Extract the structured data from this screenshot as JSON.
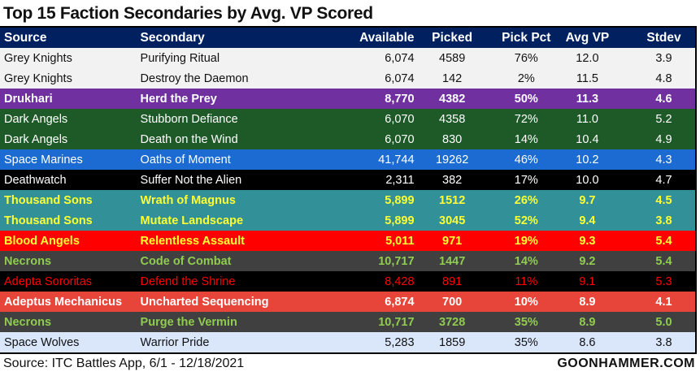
{
  "title": "Top 15 Faction Secondaries by Avg. VP Scored",
  "headers": [
    "Source",
    "Secondary",
    "Available",
    "Picked",
    "Pick Pct",
    "Avg VP",
    "Stdev"
  ],
  "rows": [
    {
      "source": "Grey Knights",
      "secondary": "Purifying Ritual",
      "available": "6,074",
      "picked": "4589",
      "pct": "76%",
      "avg": "12.0",
      "stdev": "3.9",
      "bg": "#f2f2f2",
      "fg": "#111111",
      "bold": false
    },
    {
      "source": "Grey Knights",
      "secondary": "Destroy the Daemon",
      "available": "6,074",
      "picked": "142",
      "pct": "2%",
      "avg": "11.5",
      "stdev": "4.8",
      "bg": "#f2f2f2",
      "fg": "#111111",
      "bold": false
    },
    {
      "source": "Drukhari",
      "secondary": "Herd the Prey",
      "available": "8,770",
      "picked": "4382",
      "pct": "50%",
      "avg": "11.3",
      "stdev": "4.6",
      "bg": "#7030a0",
      "fg": "#ffffff",
      "bold": true
    },
    {
      "source": "Dark Angels",
      "secondary": "Stubborn Defiance",
      "available": "6,070",
      "picked": "4358",
      "pct": "72%",
      "avg": "11.0",
      "stdev": "5.2",
      "bg": "#1e5a28",
      "fg": "#ffffff",
      "bold": false
    },
    {
      "source": "Dark Angels",
      "secondary": "Death on the Wind",
      "available": "6,070",
      "picked": "830",
      "pct": "14%",
      "avg": "10.4",
      "stdev": "4.9",
      "bg": "#1e5a28",
      "fg": "#ffffff",
      "bold": false
    },
    {
      "source": "Space Marines",
      "secondary": "Oaths of Moment",
      "available": "41,744",
      "picked": "19262",
      "pct": "46%",
      "avg": "10.2",
      "stdev": "4.3",
      "bg": "#1b6bd3",
      "fg": "#ffffff",
      "bold": false
    },
    {
      "source": "Deathwatch",
      "secondary": "Suffer Not the Alien",
      "available": "2,311",
      "picked": "382",
      "pct": "17%",
      "avg": "10.0",
      "stdev": "4.7",
      "bg": "#000000",
      "fg": "#ffffff",
      "bold": false
    },
    {
      "source": "Thousand Sons",
      "secondary": "Wrath of Magnus",
      "available": "5,899",
      "picked": "1512",
      "pct": "26%",
      "avg": "9.7",
      "stdev": "4.5",
      "bg": "#319098",
      "fg": "#ffff33",
      "bold": true
    },
    {
      "source": "Thousand Sons",
      "secondary": "Mutate Landscape",
      "available": "5,899",
      "picked": "3045",
      "pct": "52%",
      "avg": "9.4",
      "stdev": "3.8",
      "bg": "#319098",
      "fg": "#ffff33",
      "bold": true
    },
    {
      "source": "Blood Angels",
      "secondary": "Relentless Assault",
      "available": "5,011",
      "picked": "971",
      "pct": "19%",
      "avg": "9.3",
      "stdev": "5.4",
      "bg": "#ff0000",
      "fg": "#ffff33",
      "bold": true
    },
    {
      "source": "Necrons",
      "secondary": "Code of Combat",
      "available": "10,717",
      "picked": "1447",
      "pct": "14%",
      "avg": "9.2",
      "stdev": "5.4",
      "bg": "#404040",
      "fg": "#8fcc4f",
      "bold": true
    },
    {
      "source": "Adepta Sororitas",
      "secondary": "Defend the Shrine",
      "available": "8,428",
      "picked": "891",
      "pct": "11%",
      "avg": "9.1",
      "stdev": "5.3",
      "bg": "#000000",
      "fg": "#ff0000",
      "bold": false
    },
    {
      "source": "Adeptus Mechanicus",
      "secondary": "Uncharted Sequencing",
      "available": "6,874",
      "picked": "700",
      "pct": "10%",
      "avg": "8.9",
      "stdev": "4.1",
      "bg": "#e8453a",
      "fg": "#ffffff",
      "bold": true
    },
    {
      "source": "Necrons",
      "secondary": "Purge the Vermin",
      "available": "10,717",
      "picked": "3728",
      "pct": "35%",
      "avg": "8.9",
      "stdev": "5.0",
      "bg": "#404040",
      "fg": "#8fcc4f",
      "bold": true
    },
    {
      "source": "Space Wolves",
      "secondary": "Warrior Pride",
      "available": "5,283",
      "picked": "1859",
      "pct": "35%",
      "avg": "8.6",
      "stdev": "3.8",
      "bg": "#dae7fa",
      "fg": "#111111",
      "bold": false
    }
  ],
  "footer": {
    "source": "Source: ITC Battles App, 6/1 - 12/18/2021",
    "brand": "GOONHAMMER.COM"
  },
  "colors": {
    "header_bg": "#002060"
  }
}
